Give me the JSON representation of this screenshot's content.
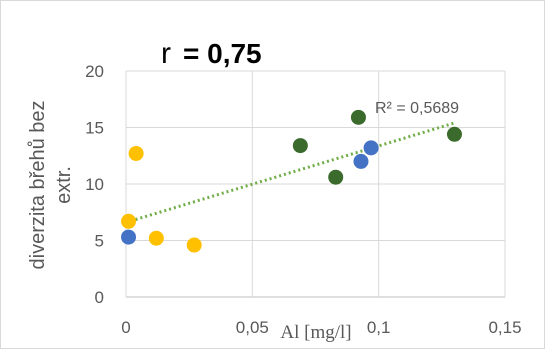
{
  "chart_data": {
    "type": "scatter",
    "title_prefix": "r",
    "title_value": "= 0,75",
    "xlabel": "Al [mg/l]",
    "ylabel_line1": "diverzita břehů bez",
    "ylabel_line2": "extr.",
    "xlim": [
      0,
      0.15
    ],
    "ylim": [
      0,
      20
    ],
    "x_ticks": [
      0,
      0.05,
      0.1,
      0.15
    ],
    "x_tick_labels": [
      "0",
      "0,05",
      "0,1",
      "0,15"
    ],
    "y_ticks": [
      0,
      5,
      10,
      15,
      20
    ],
    "y_tick_labels": [
      "0",
      "5",
      "10",
      "15",
      "20"
    ],
    "grid": "horizontal-and-vertical",
    "series": [
      {
        "color": "#ffc000",
        "points": [
          {
            "x": 0.001,
            "y": 6.7
          },
          {
            "x": 0.004,
            "y": 12.7
          },
          {
            "x": 0.012,
            "y": 5.2
          },
          {
            "x": 0.027,
            "y": 4.6
          }
        ]
      },
      {
        "color": "#4472c4",
        "points": [
          {
            "x": 0.001,
            "y": 5.3
          },
          {
            "x": 0.093,
            "y": 12.0
          },
          {
            "x": 0.097,
            "y": 13.2
          }
        ]
      },
      {
        "color": "#3a6b2c",
        "points": [
          {
            "x": 0.069,
            "y": 13.4
          },
          {
            "x": 0.083,
            "y": 10.6
          },
          {
            "x": 0.092,
            "y": 15.9
          },
          {
            "x": 0.13,
            "y": 14.4
          }
        ]
      }
    ],
    "trendline": {
      "color": "#70ad47",
      "x": [
        0.0,
        0.13
      ],
      "y": [
        6.6,
        15.4
      ],
      "r2_label": "R² = 0,5689"
    }
  }
}
